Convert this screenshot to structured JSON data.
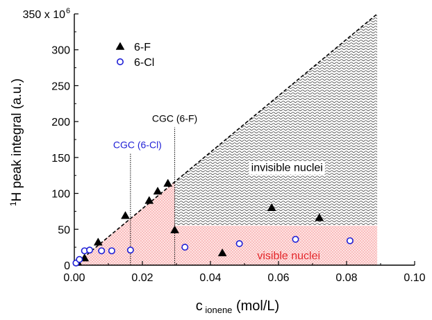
{
  "chart_data": {
    "type": "scatter",
    "xlabel_main": "c",
    "xlabel_sub": "ionene",
    "xlabel_unit": " (mol/L)",
    "ylabel_sup": "1",
    "ylabel_text": "H peak integral (a.u.)",
    "xlim": [
      0.0,
      0.1
    ],
    "ylim": [
      0,
      350
    ],
    "x_ticks": [
      0.0,
      0.02,
      0.04,
      0.06,
      0.08,
      0.1
    ],
    "x_tick_labels": [
      "0.00",
      "0.02",
      "0.04",
      "0.06",
      "0.08",
      "0.10"
    ],
    "y_ticks": [
      0,
      50,
      100,
      150,
      200,
      250,
      300,
      350
    ],
    "y_tick_labels": [
      "0",
      "50",
      "100",
      "150",
      "200",
      "250",
      "300",
      "350 x 10"
    ],
    "y_top_exponent": "6",
    "grid": false,
    "legend_position": "top-left",
    "series": [
      {
        "name": "6-F",
        "marker": "filled-triangle",
        "color": "#000000",
        "points": [
          {
            "x": 0.001,
            "y": 4
          },
          {
            "x": 0.003,
            "y": 10
          },
          {
            "x": 0.007,
            "y": 32
          },
          {
            "x": 0.015,
            "y": 69
          },
          {
            "x": 0.022,
            "y": 90
          },
          {
            "x": 0.0245,
            "y": 103
          },
          {
            "x": 0.0275,
            "y": 114
          },
          {
            "x": 0.0295,
            "y": 49
          },
          {
            "x": 0.0435,
            "y": 17
          },
          {
            "x": 0.058,
            "y": 80
          },
          {
            "x": 0.072,
            "y": 66
          }
        ]
      },
      {
        "name": "6-Cl",
        "marker": "open-circle",
        "color": "#1f1fd6",
        "points": [
          {
            "x": 0.0005,
            "y": 3
          },
          {
            "x": 0.0015,
            "y": 8
          },
          {
            "x": 0.003,
            "y": 20
          },
          {
            "x": 0.0045,
            "y": 21
          },
          {
            "x": 0.008,
            "y": 20
          },
          {
            "x": 0.011,
            "y": 20
          },
          {
            "x": 0.0165,
            "y": 21
          },
          {
            "x": 0.0325,
            "y": 25
          },
          {
            "x": 0.0485,
            "y": 30
          },
          {
            "x": 0.065,
            "y": 36
          },
          {
            "x": 0.081,
            "y": 34
          }
        ]
      }
    ],
    "diagonal_line": {
      "x": [
        0.0,
        0.089
      ],
      "y": [
        0,
        350
      ]
    },
    "regions": {
      "visible_fill_color": "#ffd6d6",
      "visible_level": 55,
      "visible_xmax": 0.089,
      "invisible_xmax": 0.089
    },
    "cgc_lines": [
      {
        "label": "CGC (6-Cl)",
        "x": 0.0165,
        "y_top": 155,
        "color": "#1f1fd6"
      },
      {
        "label": "CGC (6-F)",
        "x": 0.0295,
        "y_top": 192,
        "color": "#000000"
      }
    ],
    "annotations": [
      {
        "text": "invisible nuclei",
        "x": 0.0625,
        "y": 131,
        "color": "#000000"
      },
      {
        "text": "visible nuclei",
        "x": 0.063,
        "y": 8,
        "color": "#e3262a"
      }
    ]
  }
}
